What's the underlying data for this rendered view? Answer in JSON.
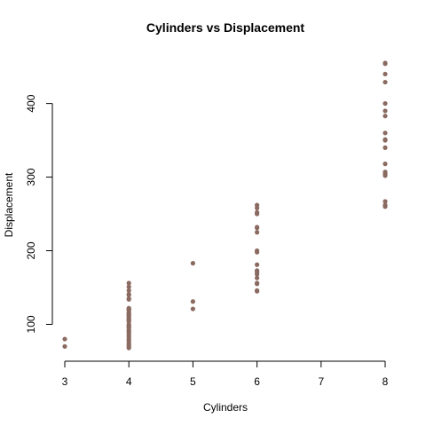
{
  "chart_data": {
    "type": "scatter",
    "title": "Cylinders vs Displacement",
    "xlabel": "Cylinders",
    "ylabel": "Displacement",
    "xlim": [
      3,
      8
    ],
    "ylim": [
      68,
      455
    ],
    "xticks": [
      3,
      4,
      5,
      6,
      7,
      8
    ],
    "yticks": [
      100,
      200,
      300,
      400
    ],
    "grid": false,
    "point_color": "#8B6B61",
    "points": [
      {
        "x": 3,
        "y": 70
      },
      {
        "x": 3,
        "y": 80
      },
      {
        "x": 4,
        "y": 68
      },
      {
        "x": 4,
        "y": 70
      },
      {
        "x": 4,
        "y": 72
      },
      {
        "x": 4,
        "y": 75
      },
      {
        "x": 4,
        "y": 78
      },
      {
        "x": 4,
        "y": 80
      },
      {
        "x": 4,
        "y": 83
      },
      {
        "x": 4,
        "y": 85
      },
      {
        "x": 4,
        "y": 88
      },
      {
        "x": 4,
        "y": 90
      },
      {
        "x": 4,
        "y": 92
      },
      {
        "x": 4,
        "y": 95
      },
      {
        "x": 4,
        "y": 97
      },
      {
        "x": 4,
        "y": 98
      },
      {
        "x": 4,
        "y": 100
      },
      {
        "x": 4,
        "y": 104
      },
      {
        "x": 4,
        "y": 105
      },
      {
        "x": 4,
        "y": 107
      },
      {
        "x": 4,
        "y": 108
      },
      {
        "x": 4,
        "y": 110
      },
      {
        "x": 4,
        "y": 112
      },
      {
        "x": 4,
        "y": 113
      },
      {
        "x": 4,
        "y": 114
      },
      {
        "x": 4,
        "y": 116
      },
      {
        "x": 4,
        "y": 119
      },
      {
        "x": 4,
        "y": 120
      },
      {
        "x": 4,
        "y": 121
      },
      {
        "x": 4,
        "y": 122
      },
      {
        "x": 4,
        "y": 134
      },
      {
        "x": 4,
        "y": 135
      },
      {
        "x": 4,
        "y": 140
      },
      {
        "x": 4,
        "y": 141
      },
      {
        "x": 4,
        "y": 146
      },
      {
        "x": 4,
        "y": 151
      },
      {
        "x": 4,
        "y": 156
      },
      {
        "x": 5,
        "y": 121
      },
      {
        "x": 5,
        "y": 131
      },
      {
        "x": 5,
        "y": 183
      },
      {
        "x": 6,
        "y": 145
      },
      {
        "x": 6,
        "y": 146
      },
      {
        "x": 6,
        "y": 155
      },
      {
        "x": 6,
        "y": 156
      },
      {
        "x": 6,
        "y": 163
      },
      {
        "x": 6,
        "y": 168
      },
      {
        "x": 6,
        "y": 171
      },
      {
        "x": 6,
        "y": 173
      },
      {
        "x": 6,
        "y": 181
      },
      {
        "x": 6,
        "y": 198
      },
      {
        "x": 6,
        "y": 200
      },
      {
        "x": 6,
        "y": 225
      },
      {
        "x": 6,
        "y": 231
      },
      {
        "x": 6,
        "y": 232
      },
      {
        "x": 6,
        "y": 250
      },
      {
        "x": 6,
        "y": 252
      },
      {
        "x": 6,
        "y": 258
      },
      {
        "x": 6,
        "y": 262
      },
      {
        "x": 8,
        "y": 260
      },
      {
        "x": 8,
        "y": 262
      },
      {
        "x": 8,
        "y": 267
      },
      {
        "x": 8,
        "y": 302
      },
      {
        "x": 8,
        "y": 304
      },
      {
        "x": 8,
        "y": 305
      },
      {
        "x": 8,
        "y": 307
      },
      {
        "x": 8,
        "y": 318
      },
      {
        "x": 8,
        "y": 340
      },
      {
        "x": 8,
        "y": 350
      },
      {
        "x": 8,
        "y": 351
      },
      {
        "x": 8,
        "y": 360
      },
      {
        "x": 8,
        "y": 383
      },
      {
        "x": 8,
        "y": 390
      },
      {
        "x": 8,
        "y": 400
      },
      {
        "x": 8,
        "y": 429
      },
      {
        "x": 8,
        "y": 440
      },
      {
        "x": 8,
        "y": 454
      },
      {
        "x": 8,
        "y": 455
      }
    ]
  }
}
